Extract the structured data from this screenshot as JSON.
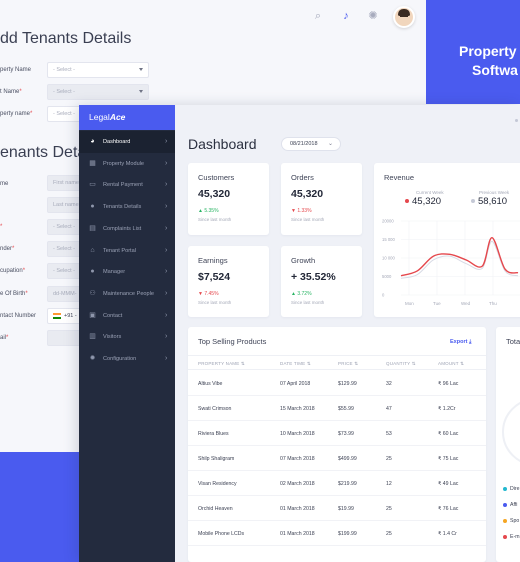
{
  "background_form": {
    "title1": "dd Tenants Details",
    "title2": "enants Details",
    "fields": [
      {
        "label": "perty Name",
        "required": false,
        "value": "- Select -"
      },
      {
        "label": "t Name",
        "required": true,
        "value": "- Select -"
      },
      {
        "label": "perty name",
        "required": true,
        "value": "- Select -"
      },
      {
        "label": "me",
        "required": false,
        "value": "First name"
      },
      {
        "label": "",
        "required": false,
        "value": "Last name"
      },
      {
        "label": "",
        "required": true,
        "value": "- Select -"
      },
      {
        "label": "nder",
        "required": true,
        "value": "- Select -"
      },
      {
        "label": "cupation",
        "required": true,
        "value": "- Select -"
      },
      {
        "label": "e Of Birth",
        "required": true,
        "value": "dd-MMM-"
      },
      {
        "label": "ntact Number",
        "required": false,
        "value": "+91 -"
      },
      {
        "label": "ail",
        "required": true,
        "value": ""
      }
    ],
    "promo_line1": "Property",
    "promo_line2": "Softwa"
  },
  "app": {
    "logo_plain": "Legal",
    "logo_bold": "Ace",
    "nav": [
      {
        "label": "Dashboard",
        "icon": "dashboard-icon",
        "glyph": "◕",
        "active": true
      },
      {
        "label": "Property Module",
        "icon": "building-icon",
        "glyph": "▦",
        "active": false
      },
      {
        "label": "Rental Payment",
        "icon": "card-icon",
        "glyph": "▭",
        "active": false
      },
      {
        "label": "Tenants Details",
        "icon": "user-icon",
        "glyph": "●",
        "active": false
      },
      {
        "label": "Complaints List",
        "icon": "list-icon",
        "glyph": "▤",
        "active": false
      },
      {
        "label": "Tenant Portal",
        "icon": "home-icon",
        "glyph": "⌂",
        "active": false
      },
      {
        "label": "Manager",
        "icon": "manager-icon",
        "glyph": "●",
        "active": false
      },
      {
        "label": "Maintenance People",
        "icon": "people-icon",
        "glyph": "⚇",
        "active": false
      },
      {
        "label": "Contact",
        "icon": "contact-icon",
        "glyph": "▣",
        "active": false
      },
      {
        "label": "Visitors",
        "icon": "visitors-icon",
        "glyph": "▥",
        "active": false
      },
      {
        "label": "Configuration",
        "icon": "gear-icon",
        "glyph": "✹",
        "active": false
      }
    ],
    "dashboard_title": "Dashboard",
    "date": "08/21/2018",
    "stats": {
      "customers": {
        "title": "Customers",
        "value": "45,320",
        "delta": "▲ 5.35%",
        "sub": "Since last month"
      },
      "orders": {
        "title": "Orders",
        "value": "45,320",
        "delta": "▼ 1.33%",
        "sub": "Since last month"
      },
      "earnings": {
        "title": "Earnings",
        "value": "$7,524",
        "delta": "▼ 7.45%",
        "sub": "Since last month"
      },
      "growth": {
        "title": "Growth",
        "value": "+ 35.52%",
        "delta": "▲ 3.72%",
        "sub": "Since last month"
      }
    },
    "revenue": {
      "title": "Revenue",
      "current_label": "Current Week",
      "current_value": "45,320",
      "previous_label": "Previous Week",
      "previous_value": "58,610",
      "current_color": "#e5484d",
      "previous_color": "#c5c9d6"
    },
    "products": {
      "title": "Top Selling Products",
      "export_label": "Export",
      "headers": [
        "PROPERTY NAME",
        "DATE TIME",
        "PRICE",
        "QUANTITY",
        "AMOUNT"
      ],
      "rows": [
        [
          "Altius Vibe",
          "07 April 2018",
          "$129.99",
          "32",
          "₹ 96 Lac"
        ],
        [
          "Swati Crimson",
          "15 March 2018",
          "$55.99",
          "47",
          "₹ 1.2Cr"
        ],
        [
          "Riviera Blues",
          "10 March 2018",
          "$73.99",
          "53",
          "₹ 60 Lac"
        ],
        [
          "Shilp Shaligram",
          "07 March 2018",
          "$499.99",
          "25",
          "₹ 75 Lac"
        ],
        [
          "Visan Residency",
          "02 March 2018",
          "$219.99",
          "12",
          "₹ 49 Lac"
        ],
        [
          "Orchid Heaven",
          "01 March 2018",
          "$19.99",
          "25",
          "₹ 76 Lac"
        ],
        [
          "Mobile Phone LCDs",
          "01 March 2018",
          "$199.99",
          "25",
          "₹ 1.4 Cr"
        ]
      ]
    },
    "total": {
      "title": "Tota",
      "legend": [
        {
          "label": "Dire",
          "color": "#22b8cf"
        },
        {
          "label": "Affi",
          "color": "#4a5bef"
        },
        {
          "label": "Spo",
          "color": "#f5a623"
        },
        {
          "label": "E-m",
          "color": "#e5484d"
        }
      ]
    }
  },
  "chart_data": {
    "type": "line",
    "title": "Revenue",
    "categories": [
      "Mon",
      "Tue",
      "Wed",
      "Thu"
    ],
    "x_ticks": [
      "Mon",
      "Tue",
      "Wed",
      "Thu"
    ],
    "y_ticks": [
      "0",
      "5000",
      "10 000",
      "15 000",
      "20000"
    ],
    "ylim": [
      0,
      20000
    ],
    "series": [
      {
        "name": "Current Week",
        "color": "#e5484d",
        "points": [
          [
            0,
            5200
          ],
          [
            0.5,
            6500
          ],
          [
            1,
            10500
          ],
          [
            1.5,
            11000
          ],
          [
            2,
            9500
          ],
          [
            2.5,
            7800
          ],
          [
            2.8,
            15500
          ],
          [
            3.2,
            7000
          ],
          [
            3.6,
            6000
          ]
        ]
      },
      {
        "name": "Previous Week",
        "color": "#d8dbe5",
        "points": [
          [
            0,
            4500
          ],
          [
            0.5,
            5500
          ],
          [
            1,
            9500
          ],
          [
            1.5,
            10500
          ],
          [
            2,
            8500
          ],
          [
            2.5,
            7200
          ],
          [
            2.8,
            14500
          ],
          [
            3.2,
            6500
          ],
          [
            3.6,
            5200
          ]
        ]
      }
    ],
    "grid": true
  }
}
